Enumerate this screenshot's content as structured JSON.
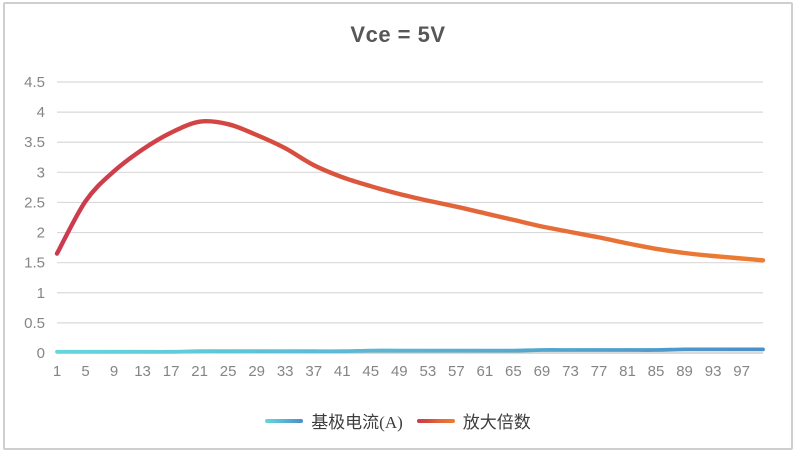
{
  "frame": {
    "background": "#ffffff",
    "border_color": "#cfcfcf"
  },
  "chart_data": {
    "type": "line",
    "title": "Vce = 5V",
    "title_color": "#575757",
    "xlabel": "",
    "ylabel": "",
    "ylim": [
      0,
      4.5
    ],
    "xlim": [
      1,
      100
    ],
    "grid": "horizontal",
    "gridline_color": "#d9d9d9",
    "axis_line_color": "#c3c3c3",
    "tick_label_color": "#858585",
    "legend_position": "bottom",
    "ytick_labels": [
      "0",
      "0.5",
      "1",
      "1.5",
      "2",
      "2.5",
      "3",
      "3.5",
      "4",
      "4.5"
    ],
    "xtick_labels": [
      "1",
      "5",
      "9",
      "13",
      "17",
      "21",
      "25",
      "29",
      "33",
      "37",
      "41",
      "45",
      "49",
      "53",
      "57",
      "61",
      "65",
      "69",
      "73",
      "77",
      "81",
      "85",
      "89",
      "93",
      "97"
    ],
    "x": [
      1,
      5,
      9,
      13,
      17,
      21,
      25,
      29,
      33,
      37,
      41,
      45,
      49,
      53,
      57,
      61,
      65,
      69,
      73,
      77,
      81,
      85,
      89,
      93,
      97,
      100
    ],
    "series": [
      {
        "key": "base-current",
        "name": "基极电流(A)",
        "values": [
          0.02,
          0.02,
          0.02,
          0.02,
          0.02,
          0.03,
          0.03,
          0.03,
          0.03,
          0.03,
          0.03,
          0.04,
          0.04,
          0.04,
          0.04,
          0.04,
          0.04,
          0.05,
          0.05,
          0.05,
          0.05,
          0.05,
          0.06,
          0.06,
          0.06,
          0.06
        ],
        "color_stops": [
          {
            "offset": 0,
            "color": "#67D6DA"
          },
          {
            "offset": 50,
            "color": "#58B4D4"
          },
          {
            "offset": 100,
            "color": "#4B8FC8"
          }
        ]
      },
      {
        "key": "gain",
        "name": "放大倍数",
        "values": [
          1.65,
          2.52,
          3.02,
          3.38,
          3.66,
          3.84,
          3.8,
          3.62,
          3.4,
          3.12,
          2.92,
          2.77,
          2.64,
          2.53,
          2.43,
          2.32,
          2.21,
          2.1,
          2.01,
          1.92,
          1.82,
          1.73,
          1.66,
          1.61,
          1.57,
          1.54
        ],
        "color_stops": [
          {
            "offset": 0,
            "color": "#CB3A50"
          },
          {
            "offset": 28,
            "color": "#D5493F"
          },
          {
            "offset": 58,
            "color": "#E3663A"
          },
          {
            "offset": 100,
            "color": "#ED7D31"
          }
        ]
      }
    ]
  }
}
